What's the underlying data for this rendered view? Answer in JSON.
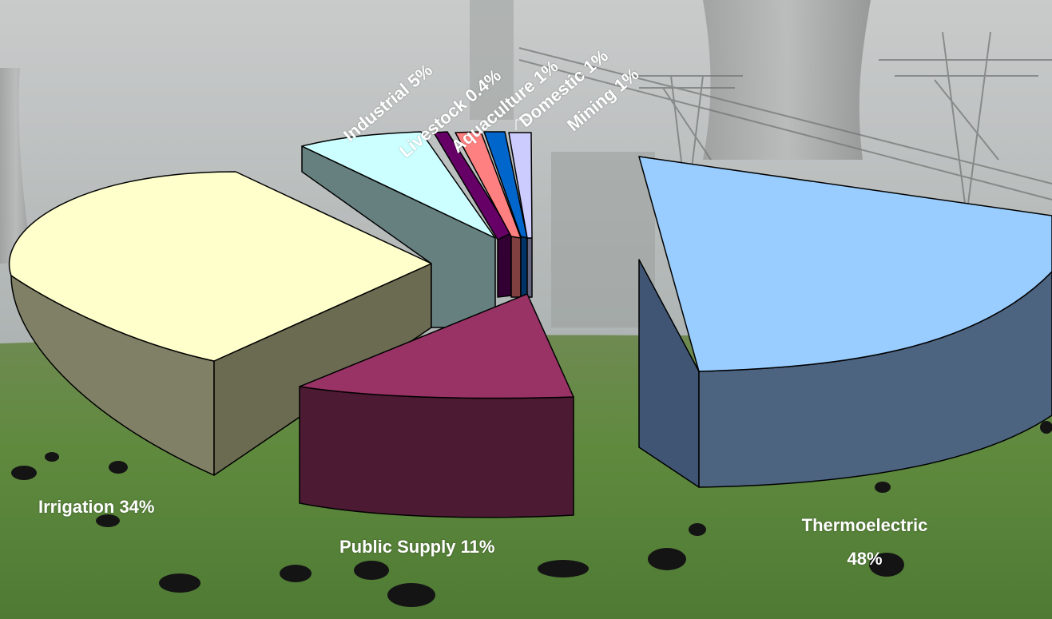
{
  "chart_data": {
    "type": "pie",
    "title": "",
    "three_d": true,
    "exploded": true,
    "slices": [
      {
        "name": "Thermoelectric",
        "label": "Thermoelectric 48%",
        "value": 48,
        "top_color": "#99ccff",
        "side_color": "#4d6480"
      },
      {
        "name": "Public Supply",
        "label": "Public Supply 11%",
        "value": 11,
        "top_color": "#993366",
        "side_color": "#4d1a33"
      },
      {
        "name": "Irrigation",
        "label": "Irrigation 34%",
        "value": 34,
        "top_color": "#ffffcc",
        "side_color": "#808066"
      },
      {
        "name": "Industrial",
        "label": "Industrial 5%",
        "value": 5,
        "top_color": "#ccffff",
        "side_color": "#668080"
      },
      {
        "name": "Livestock",
        "label": "Livestock 0.4%",
        "value": 0.4,
        "top_color": "#660066",
        "side_color": "#330033"
      },
      {
        "name": "Aquaculture",
        "label": "Aquaculture 1%",
        "value": 1,
        "top_color": "#ff8080",
        "side_color": "#804040"
      },
      {
        "name": "Domestic",
        "label": "Domestic 1%",
        "value": 1,
        "top_color": "#0066cc",
        "side_color": "#003366"
      },
      {
        "name": "Mining",
        "label": "Mining 1%",
        "value": 1,
        "top_color": "#ccccff",
        "side_color": "#666680"
      }
    ]
  }
}
